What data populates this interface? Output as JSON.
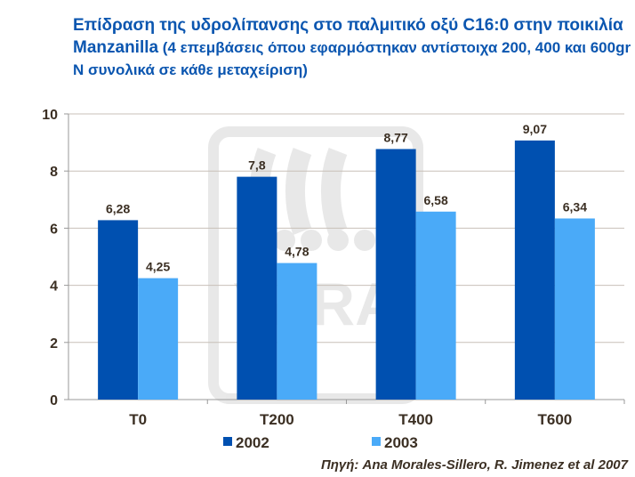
{
  "title": {
    "main": "Επίδραση της υδρολίπανσης στο παλμιτικό οξύ C16:0 στην ποικιλία Manzanilla",
    "sub": " (4 επεμβάσεις όπου εφαρμόστηκαν αντίστοιχα 200, 400 και 600gr N συνολικά σε κάθε μεταχείριση)"
  },
  "watermark": "YARA",
  "source": "Πηγή: Ana Morales-Sillero, R. Jimenez et al 2007",
  "chart_data": {
    "type": "bar",
    "title": "Επίδραση της υδρολίπανσης στο παλμιτικό οξύ C16:0 στην ποικιλία Manzanilla (4 επεμβάσεις όπου εφαρμόστηκαν αντίστοιχα 200, 400 και 600gr N συνολικά σε κάθε μεταχείριση)",
    "categories": [
      "T0",
      "T200",
      "T400",
      "T600"
    ],
    "series": [
      {
        "name": "2002",
        "color": "#0050b0",
        "values": [
          6.28,
          7.8,
          8.77,
          9.07
        ],
        "labels": [
          "6,28",
          "7,8",
          "8,77",
          "9,07"
        ]
      },
      {
        "name": "2003",
        "color": "#4aaaf8",
        "values": [
          4.25,
          4.78,
          6.58,
          6.34
        ],
        "labels": [
          "4,25",
          "4,78",
          "6,58",
          "6,34"
        ]
      }
    ],
    "ylim": [
      0,
      10
    ],
    "yticks": [
      0,
      2,
      4,
      6,
      8,
      10
    ],
    "grid": true,
    "legend": "bottom",
    "xlabel": "",
    "ylabel": ""
  }
}
